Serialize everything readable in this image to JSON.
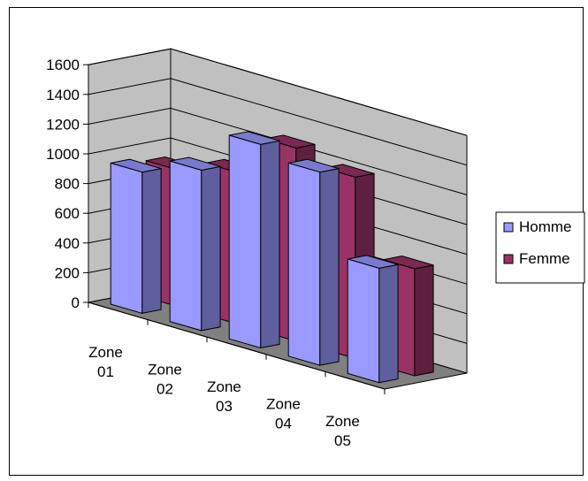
{
  "chart_data": {
    "type": "bar",
    "subtype": "3d-clustered-column",
    "categories": [
      [
        "Zone",
        "01"
      ],
      [
        "Zone",
        "02"
      ],
      [
        "Zone",
        "03"
      ],
      [
        "Zone",
        "04"
      ],
      [
        "Zone",
        "05"
      ]
    ],
    "series": [
      {
        "name": "Homme",
        "values": [
          950,
          1080,
          1370,
          1300,
          770
        ],
        "color": "#9999ff"
      },
      {
        "name": "Femme",
        "values": [
          920,
          1020,
          1300,
          1220,
          720
        ],
        "color": "#993366"
      }
    ],
    "ylim": [
      0,
      1600
    ],
    "yticks": [
      0,
      200,
      400,
      600,
      800,
      1000,
      1200,
      1400,
      1600
    ],
    "grid": true,
    "legend_position": "right",
    "colors": {
      "wall": "#c0c0c0",
      "floor": "#808080",
      "gridline": "#000000"
    }
  }
}
